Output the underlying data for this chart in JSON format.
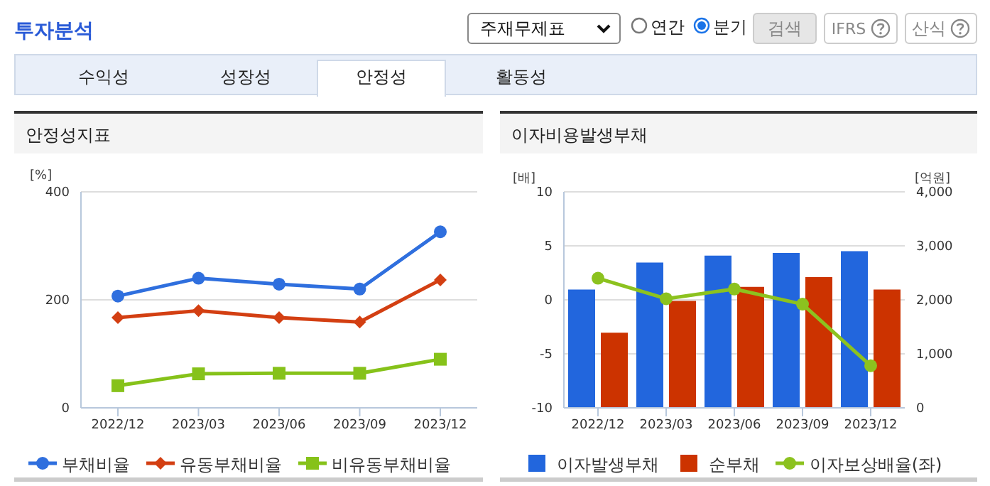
{
  "chart_data": [
    {
      "type": "other",
      "title": "투자분석",
      "annotations": [
        "주재무제표",
        "연간",
        "분기",
        "검색",
        "IFRS",
        "산식",
        "수익성",
        "성장성",
        "안정성",
        "활동성"
      ]
    },
    {
      "type": "line",
      "title": "안정성지표",
      "ylabel": "[%]",
      "categories": [
        "2022/12",
        "2023/03",
        "2023/06",
        "2023/09",
        "2023/12"
      ],
      "ylim": [
        0,
        400
      ],
      "yticks": [
        0,
        200,
        400
      ],
      "grid": "y",
      "legend": "bottom",
      "series": [
        {
          "name": "부채비율",
          "color": "#2f6fde",
          "marker": "circle",
          "values": [
            207,
            240,
            229,
            220,
            326
          ]
        },
        {
          "name": "유동부채비율",
          "color": "#d33f12",
          "marker": "diamond",
          "values": [
            167,
            180,
            167,
            159,
            237
          ]
        },
        {
          "name": "비유동부채비율",
          "color": "#86c21a",
          "marker": "square",
          "values": [
            41,
            63,
            64,
            64,
            90
          ]
        }
      ]
    },
    {
      "type": "bar",
      "title": "이자비용발생부채",
      "ylabel": "[배]",
      "y2label": "[억원]",
      "categories": [
        "2022/12",
        "2023/03",
        "2023/06",
        "2023/09",
        "2023/12"
      ],
      "ylim": [
        -10,
        10
      ],
      "yticks": [
        -10,
        -5,
        0,
        5,
        10
      ],
      "y2lim": [
        0,
        4000
      ],
      "y2ticks": [
        {
          "value": 0,
          "label": "0"
        },
        {
          "value": 1000,
          "label": "1,000"
        },
        {
          "value": 2000,
          "label": "2,000"
        },
        {
          "value": 3000,
          "label": "3,000"
        },
        {
          "value": 4000,
          "label": "4,000"
        }
      ],
      "grid": "y",
      "legend": "bottom",
      "series": [
        {
          "name": "이자발생부채",
          "color": "#2266dd",
          "axis": "y2",
          "values": [
            2190,
            2690,
            2820,
            2870,
            2900
          ]
        },
        {
          "name": "순부채",
          "color": "#cc3300",
          "axis": "y2",
          "values": [
            1390,
            1980,
            2240,
            2420,
            2190
          ]
        },
        {
          "name": "이자보상배율(좌)",
          "type": "line",
          "color": "#8cc21f",
          "marker": "circle",
          "values": [
            2.0,
            0.1,
            1.0,
            -0.4,
            -6.1
          ]
        }
      ]
    }
  ]
}
